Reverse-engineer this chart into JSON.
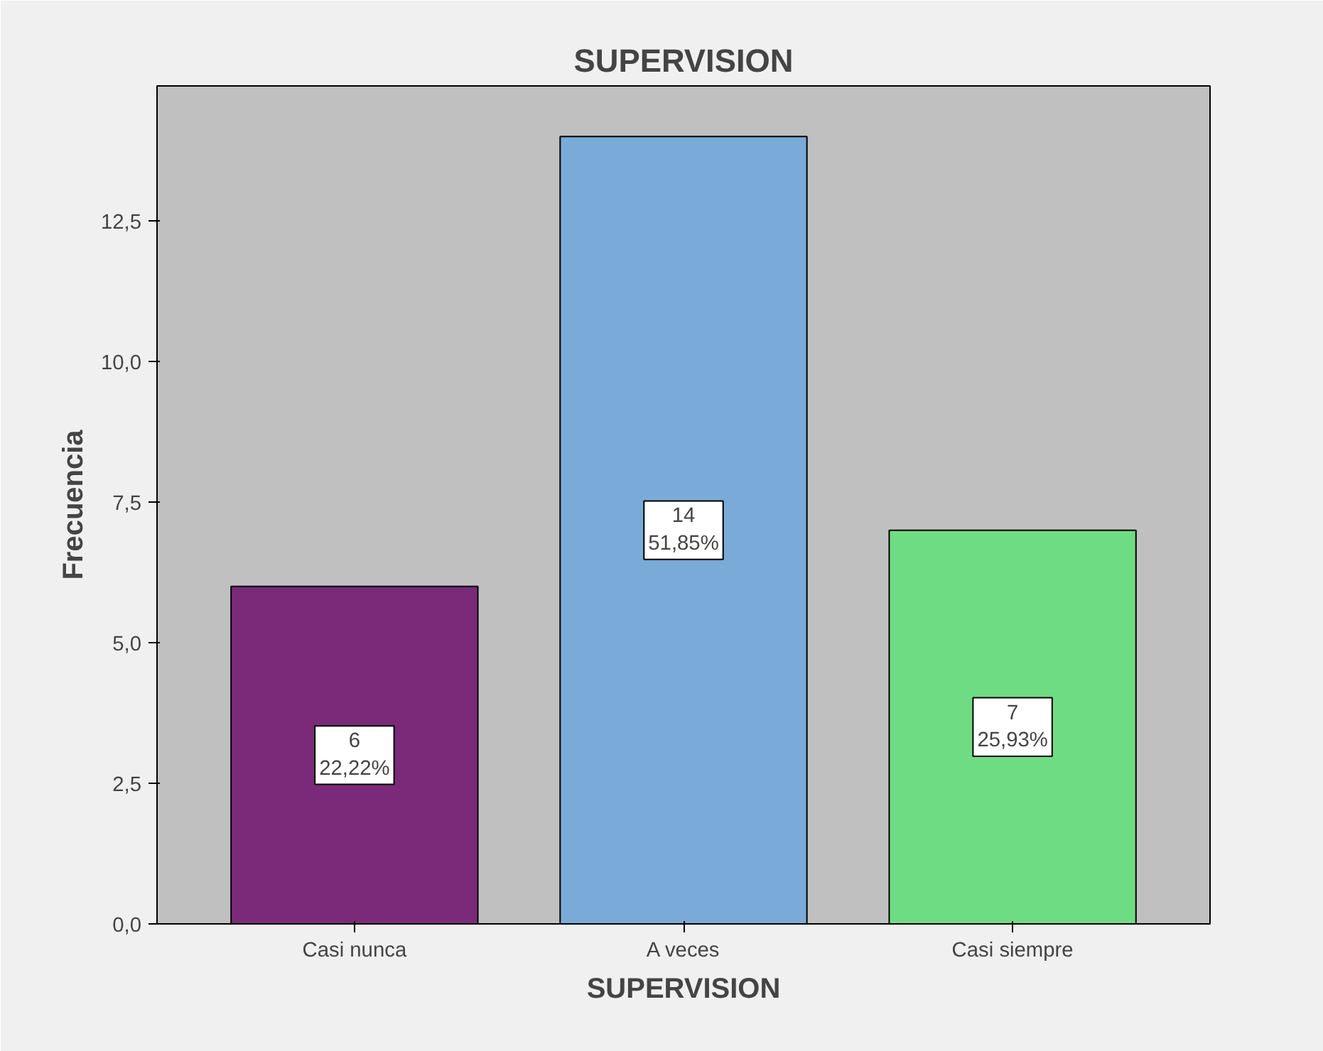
{
  "chart_data": {
    "type": "bar",
    "title": "SUPERVISION",
    "xlabel": "SUPERVISION",
    "ylabel": "Frecuencia",
    "categories": [
      "Casi nunca",
      "A veces",
      "Casi siempre"
    ],
    "values": [
      6,
      14,
      7
    ],
    "colors": [
      "#7b2a7a",
      "#7aaad8",
      "#6edc82"
    ],
    "value_labels": [
      "6\n22,22%",
      "14\n51,85%",
      "7\n25,93%"
    ],
    "ylim": [
      0,
      14.9
    ],
    "yticks": [
      {
        "value": 0,
        "label": "0,0"
      },
      {
        "value": 2.5,
        "label": "2,5"
      },
      {
        "value": 5,
        "label": "5,0"
      },
      {
        "value": 7.5,
        "label": "7,5"
      },
      {
        "value": 10,
        "label": "10,0"
      },
      {
        "value": 12.5,
        "label": "12,5"
      }
    ],
    "grid": false
  }
}
